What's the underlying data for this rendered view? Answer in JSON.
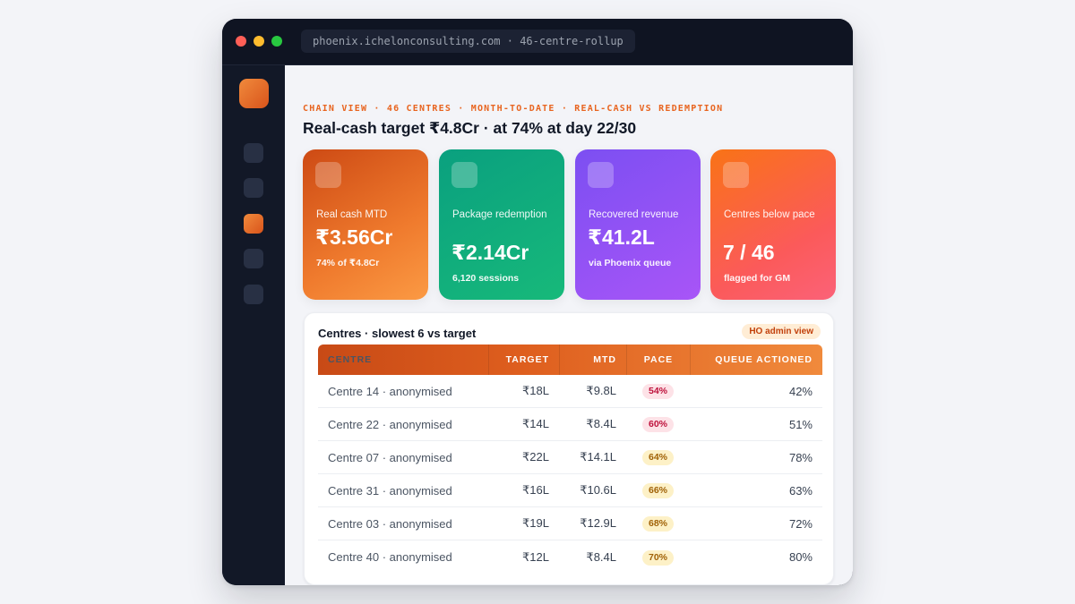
{
  "browser": {
    "url": "phoenix.ichelonconsulting.com · 46-centre-rollup"
  },
  "header": {
    "eyebrow": "CHAIN VIEW · 46 CENTRES · MONTH-TO-DATE · REAL-CASH VS REDEMPTION",
    "title": "Real-cash target ₹4.8Cr · at 74% at day 22/30"
  },
  "kpis": [
    {
      "label": "Real cash MTD",
      "value": "₹3.56Cr",
      "sub": "74% of ₹4.8Cr"
    },
    {
      "label": "Package redemption",
      "value": "₹2.14Cr",
      "sub": "6,120 sessions"
    },
    {
      "label": "Recovered revenue",
      "value": "₹41.2L",
      "sub": "via Phoenix queue"
    },
    {
      "label": "Centres below pace",
      "value": "7 / 46",
      "sub": "flagged for GM"
    }
  ],
  "table": {
    "title": "Centres · slowest 6 vs target",
    "badge": "HO admin view",
    "columns": [
      "CENTRE",
      "TARGET",
      "MTD",
      "PACE",
      "QUEUE ACTIONED"
    ],
    "rows": [
      {
        "centre": "Centre 14 · anonymised",
        "target": "₹18L",
        "mtd": "₹9.8L",
        "pace": "54%",
        "queue": "42%"
      },
      {
        "centre": "Centre 22 · anonymised",
        "target": "₹14L",
        "mtd": "₹8.4L",
        "pace": "60%",
        "queue": "51%"
      },
      {
        "centre": "Centre 07 · anonymised",
        "target": "₹22L",
        "mtd": "₹14.1L",
        "pace": "64%",
        "queue": "78%"
      },
      {
        "centre": "Centre 31 · anonymised",
        "target": "₹16L",
        "mtd": "₹10.6L",
        "pace": "66%",
        "queue": "63%"
      },
      {
        "centre": "Centre 03 · anonymised",
        "target": "₹19L",
        "mtd": "₹12.9L",
        "pace": "68%",
        "queue": "72%"
      },
      {
        "centre": "Centre 40 · anonymised",
        "target": "₹12L",
        "mtd": "₹8.4L",
        "pace": "70%",
        "queue": "80%"
      }
    ]
  },
  "colors": {
    "accent": "#e8641f",
    "pace_low_bg": "#fde2e7",
    "pace_low_text": "#be123c",
    "pace_mid_bg": "#fdf1c7",
    "pace_mid_text": "#a16207"
  }
}
